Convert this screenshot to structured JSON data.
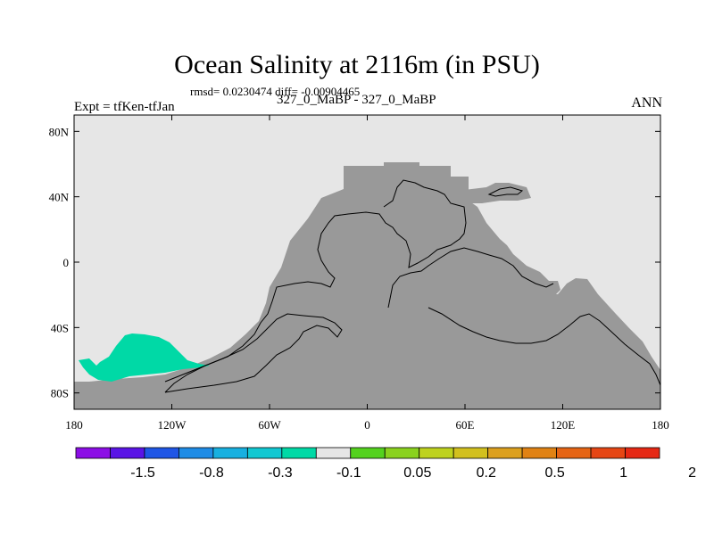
{
  "title": "Ocean Salinity at 2116m (in PSU)",
  "stats": "rmsd= 0.0230474 diff= -0.00904465",
  "experiment": "Expt = tfKen-tfJan",
  "experiment_desc": "327_0_MaBP - 327_0_MaBP",
  "season": "ANN",
  "colors": {
    "background": "#e6e6e6",
    "land": "#999999",
    "anomaly": "#00d9a6"
  },
  "map": {
    "type": "heatmap",
    "projection": "cylindrical-equidistant",
    "x_range": [
      -180,
      180
    ],
    "y_range": [
      -90,
      90
    ],
    "x_ticks": [
      "180",
      "120W",
      "60W",
      "0",
      "60E",
      "120E",
      "180"
    ],
    "y_ticks": [
      "80N",
      "40N",
      "0",
      "40S",
      "80S"
    ]
  },
  "colorbar": {
    "labels": [
      "-1.5",
      "-0.8",
      "-0.3",
      "-0.1",
      "0.05",
      "0.2",
      "0.5",
      "1",
      "2"
    ],
    "colors": [
      "#8c0ee6",
      "#5a14e6",
      "#1f56e6",
      "#1e8ce6",
      "#17b0e0",
      "#11c8d2",
      "#00d9a6",
      "#e6e6e6",
      "#54d21e",
      "#8ad21e",
      "#bed21e",
      "#d2c01e",
      "#dca01e",
      "#e08214",
      "#e66414",
      "#e64614",
      "#e62814"
    ]
  }
}
